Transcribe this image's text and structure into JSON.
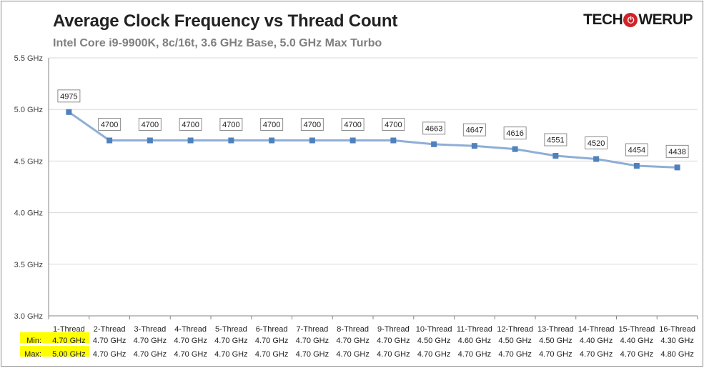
{
  "title": "Average Clock Frequency vs Thread Count",
  "subtitle": "Intel Core i9-9900K, 8c/16t, 3.6 GHz Base, 5.0 GHz Max Turbo",
  "brand": {
    "left": "TECH",
    "middle": "P",
    "right": "WERUP"
  },
  "colors": {
    "line": "#8eaed6",
    "marker": "#4f81bd",
    "grid": "#d9d9d9",
    "axis": "#868686",
    "highlight": "#ffff00"
  },
  "chart_data": {
    "type": "line",
    "title": "Average Clock Frequency vs Thread Count",
    "subtitle": "Intel Core i9-9900K, 8c/16t, 3.6 GHz Base, 5.0 GHz Max Turbo",
    "categories": [
      "1-Thread",
      "2-Thread",
      "3-Thread",
      "4-Thread",
      "5-Thread",
      "6-Thread",
      "7-Thread",
      "8-Thread",
      "9-Thread",
      "10-Thread",
      "11-Thread",
      "12-Thread",
      "13-Thread",
      "14-Thread",
      "15-Thread",
      "16-Thread"
    ],
    "values": [
      4975,
      4700,
      4700,
      4700,
      4700,
      4700,
      4700,
      4700,
      4700,
      4663,
      4647,
      4616,
      4551,
      4520,
      4454,
      4438
    ],
    "data_labels": [
      "4975",
      "4700",
      "4700",
      "4700",
      "4700",
      "4700",
      "4700",
      "4700",
      "4700",
      "4663",
      "4647",
      "4616",
      "4551",
      "4520",
      "4454",
      "4438"
    ],
    "ylim": [
      3000,
      5500
    ],
    "yticks": [
      3000,
      3500,
      4000,
      4500,
      5000,
      5500
    ],
    "ytick_labels": [
      "3.0 GHz",
      "3.5 GHz",
      "4.0 GHz",
      "4.5 GHz",
      "5.0 GHz",
      "5.5 GHz"
    ],
    "grid": true,
    "legend": "none",
    "table_rows": [
      {
        "label": "Min:",
        "values": [
          "4.70 GHz",
          "4.70 GHz",
          "4.70 GHz",
          "4.70 GHz",
          "4.70 GHz",
          "4.70 GHz",
          "4.70 GHz",
          "4.70 GHz",
          "4.70 GHz",
          "4.50 GHz",
          "4.60 GHz",
          "4.50 GHz",
          "4.50 GHz",
          "4.40 GHz",
          "4.40 GHz",
          "4.30 GHz"
        ]
      },
      {
        "label": "Max:",
        "values": [
          "5.00 GHz",
          "4.70 GHz",
          "4.70 GHz",
          "4.70 GHz",
          "4.70 GHz",
          "4.70 GHz",
          "4.70 GHz",
          "4.70 GHz",
          "4.70 GHz",
          "4.70 GHz",
          "4.70 GHz",
          "4.70 GHz",
          "4.70 GHz",
          "4.70 GHz",
          "4.70 GHz",
          "4.80 GHz"
        ]
      }
    ]
  }
}
